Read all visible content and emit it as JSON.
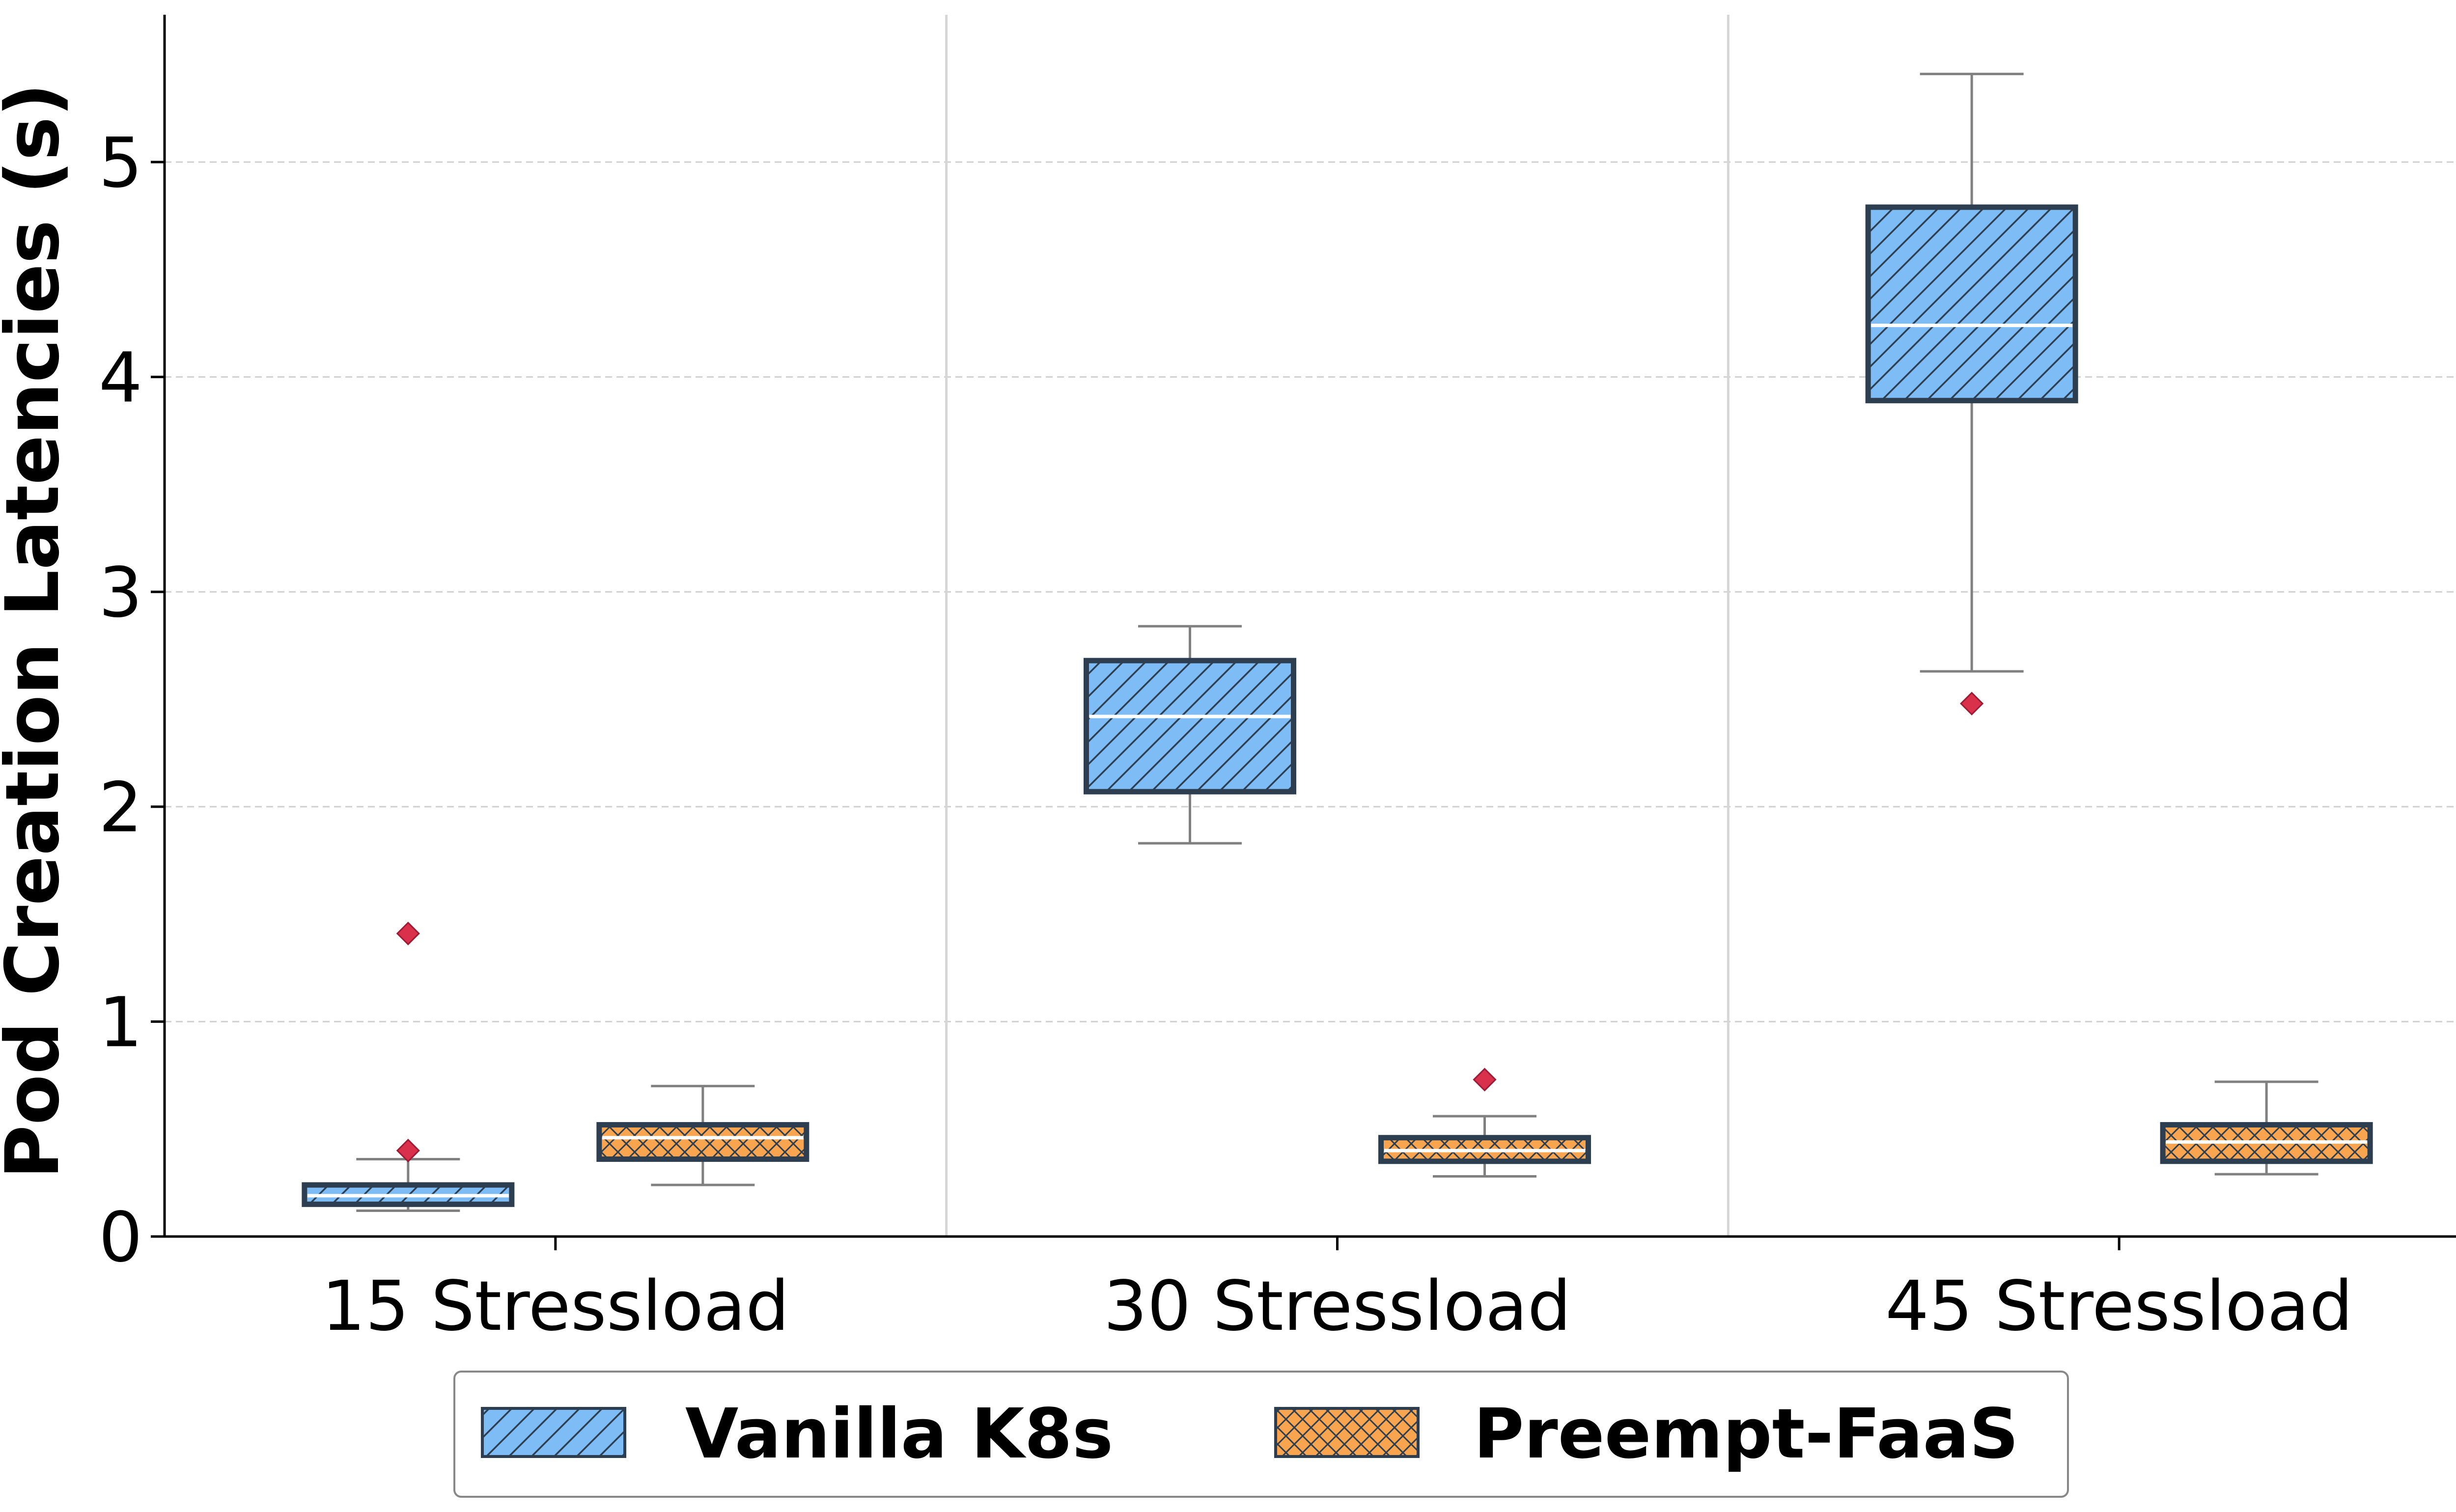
{
  "chart_data": {
    "type": "box",
    "ylabel": "Pod Creation Latencies (s)",
    "xlabel": "",
    "title": "",
    "ylim": [
      0,
      5.68
    ],
    "yticks": [
      0,
      1,
      2,
      3,
      4,
      5
    ],
    "grid": "y-dashed",
    "categories": [
      "15 Stressload",
      "30 Stressload",
      "45 Stressload"
    ],
    "legend_position": "bottom-center",
    "series": [
      {
        "name": "Vanilla K8s",
        "color": "#7dbcf4",
        "hatch": "diagonal",
        "boxes": [
          {
            "whisker_low": 0.12,
            "q1": 0.15,
            "median": 0.19,
            "q3": 0.24,
            "whisker_high": 0.36,
            "outliers": [
              0.4,
              1.41
            ]
          },
          {
            "whisker_low": 1.83,
            "q1": 2.07,
            "median": 2.42,
            "q3": 2.68,
            "whisker_high": 2.84,
            "outliers": []
          },
          {
            "whisker_low": 2.63,
            "q1": 3.89,
            "median": 4.24,
            "q3": 4.79,
            "whisker_high": 5.41,
            "outliers": [
              2.48
            ]
          }
        ]
      },
      {
        "name": "Preempt-FaaS",
        "color": "#f9a54f",
        "hatch": "cross",
        "boxes": [
          {
            "whisker_low": 0.24,
            "q1": 0.36,
            "median": 0.46,
            "q3": 0.52,
            "whisker_high": 0.7,
            "outliers": []
          },
          {
            "whisker_low": 0.28,
            "q1": 0.35,
            "median": 0.4,
            "q3": 0.46,
            "whisker_high": 0.56,
            "outliers": [
              0.73
            ]
          },
          {
            "whisker_low": 0.29,
            "q1": 0.35,
            "median": 0.44,
            "q3": 0.52,
            "whisker_high": 0.72,
            "outliers": []
          }
        ]
      }
    ],
    "colors": {
      "box_edge": "#2d3e50",
      "whisker": "#808080",
      "median": "#ffffff",
      "outlier_fill": "#d9304c",
      "outlier_edge": "#9e1b34",
      "grid": "#d0d0d0",
      "separator": "#d6d6d6",
      "axis": "#000000"
    }
  }
}
